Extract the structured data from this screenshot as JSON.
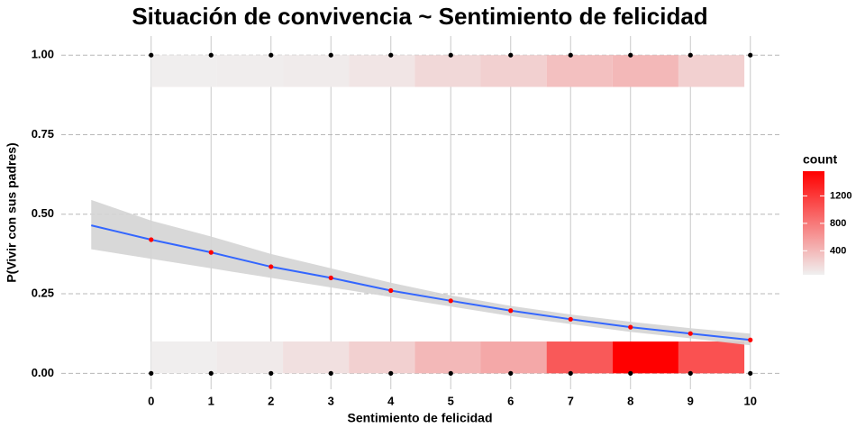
{
  "chart_data": {
    "type": "logistic",
    "title": "Situación de convivencia ~ Sentimiento de felicidad",
    "x_label": "Sentimiento de felicidad",
    "y_label": "P(Vivir con sus padres)",
    "xlim": [
      -1.5,
      10.5
    ],
    "ylim": [
      -0.05,
      1.06
    ],
    "xticks": [
      0,
      1,
      2,
      3,
      4,
      5,
      6,
      7,
      8,
      9,
      10
    ],
    "yticks": [
      {
        "value": 0,
        "label": "0.00"
      },
      {
        "value": 0.25,
        "label": "0.25"
      },
      {
        "value": 0.5,
        "label": "0.50"
      },
      {
        "value": 0.75,
        "label": "0.75"
      },
      {
        "value": 1,
        "label": "1.00"
      }
    ],
    "grid": true,
    "tiles": {
      "bins": [
        0,
        1.1,
        2.2,
        3.3,
        4.4,
        5.5,
        6.6,
        7.7,
        8.8,
        9.9
      ],
      "rows": [
        {
          "y_range": [
            0,
            0.1
          ],
          "counts": [
            60,
            90,
            150,
            250,
            400,
            500,
            1000,
            1560,
            1050
          ]
        },
        {
          "y_range": [
            0.9,
            1
          ],
          "counts": [
            60,
            70,
            80,
            120,
            200,
            250,
            350,
            400,
            250
          ]
        }
      ]
    },
    "fit": {
      "color": "#3366ff",
      "band_color": "#d4d4d4",
      "x": [
        -1,
        0,
        1,
        2,
        3,
        4,
        5,
        6,
        7,
        8,
        9,
        10
      ],
      "values": [
        0.465,
        0.42,
        0.38,
        0.335,
        0.3,
        0.26,
        0.228,
        0.197,
        0.17,
        0.145,
        0.125,
        0.105
      ],
      "lower": [
        0.39,
        0.36,
        0.33,
        0.3,
        0.27,
        0.24,
        0.21,
        0.18,
        0.155,
        0.13,
        0.11,
        0.088
      ],
      "upper": [
        0.545,
        0.48,
        0.43,
        0.375,
        0.33,
        0.285,
        0.245,
        0.212,
        0.185,
        0.162,
        0.142,
        0.125
      ]
    },
    "points": {
      "color": "#ff0000",
      "x": [
        0,
        1,
        2,
        3,
        4,
        5,
        6,
        7,
        8,
        9,
        10
      ],
      "values": [
        0.42,
        0.38,
        0.335,
        0.3,
        0.26,
        0.228,
        0.197,
        0.17,
        0.145,
        0.125,
        0.105
      ]
    },
    "observed": {
      "color": "#000000",
      "x": [
        0,
        1,
        2,
        3,
        4,
        5,
        6,
        7,
        8,
        9,
        10,
        0,
        1,
        2,
        3,
        4,
        5,
        6,
        7,
        8,
        9,
        10
      ],
      "values": [
        0,
        0,
        0,
        0,
        0,
        0,
        0,
        0,
        0,
        0,
        0,
        1,
        1,
        1,
        1,
        1,
        1,
        1,
        1,
        1,
        1,
        1
      ]
    },
    "legend": {
      "title": "count",
      "lim": [
        50,
        1560
      ],
      "ticks": [
        400,
        800,
        1200
      ],
      "low_color": "#f0f0f0",
      "high_color": "#ff0000"
    }
  }
}
